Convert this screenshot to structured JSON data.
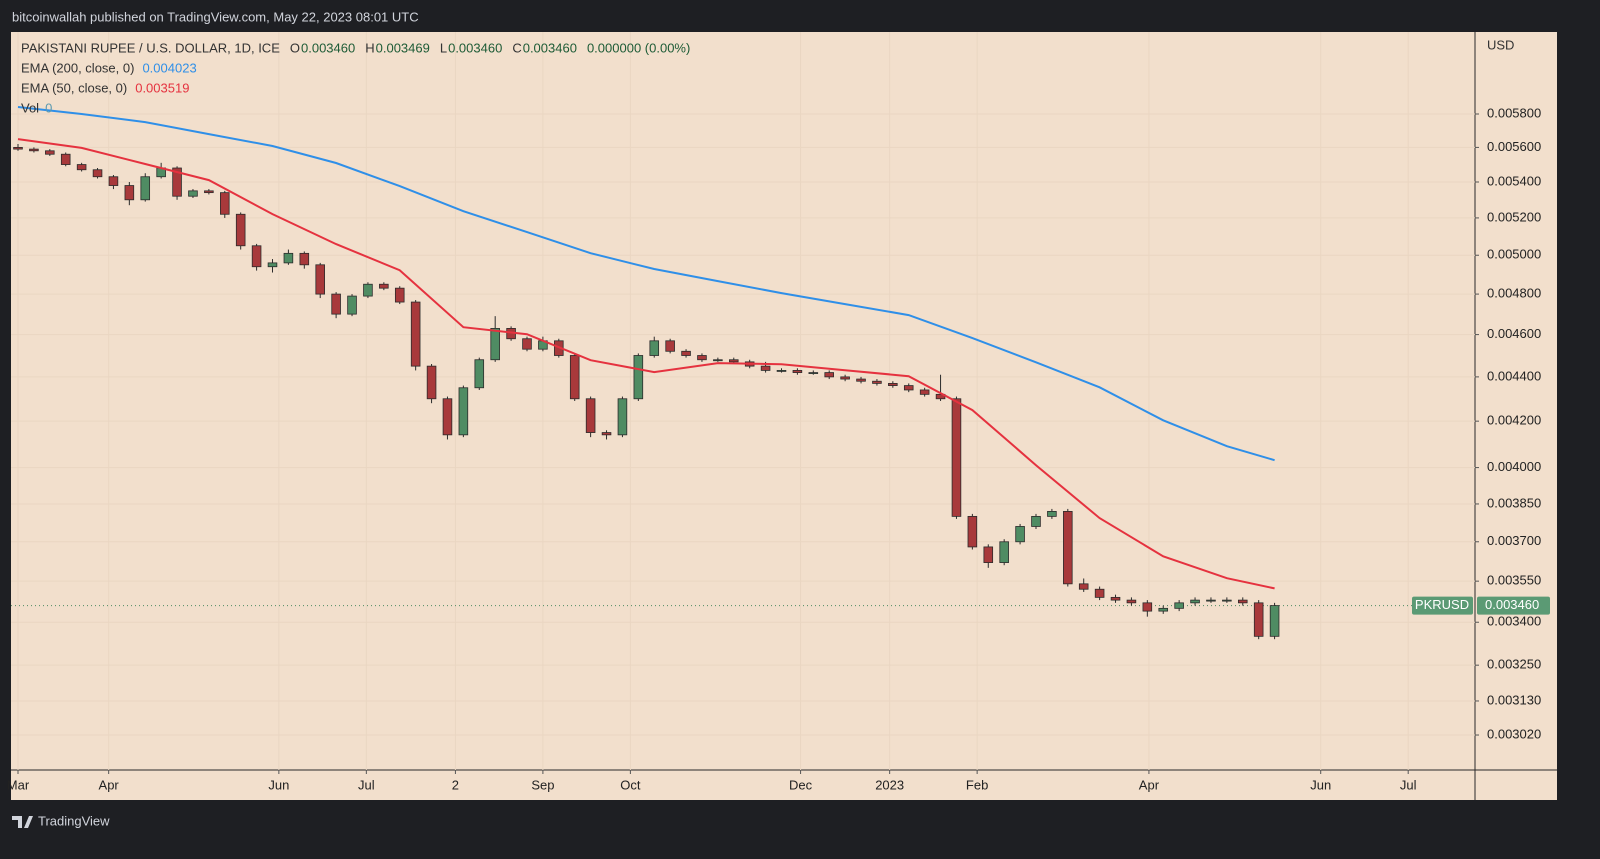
{
  "header": "bitcoinwallah published on TradingView.com, May 22, 2023 08:01 UTC",
  "footer": "TradingView",
  "chart_data": {
    "type": "candlestick",
    "legend": {
      "title": "PAKISTANI RUPEE / U.S. DOLLAR, 1D, ICE",
      "ohlc": [
        {
          "key": "O",
          "value": "0.003460"
        },
        {
          "key": "H",
          "value": "0.003469"
        },
        {
          "key": "L",
          "value": "0.003460"
        },
        {
          "key": "C",
          "value": "0.003460"
        }
      ],
      "change": "0.000000 (0.00%)",
      "volume": {
        "name": "Vol",
        "value": "0"
      }
    },
    "y_axis_label": "USD",
    "symbol": "PKRUSD",
    "last_price": {
      "value": 0.00346,
      "label": "0.003460"
    },
    "log_scale": true,
    "grid": true,
    "up_color": "#4f8c63",
    "down_color": "#a8393b",
    "xlim": [
      -0.44,
      91.6
    ],
    "xticks": [
      {
        "value": 0,
        "label": "Mar"
      },
      {
        "value": 5.7,
        "label": "Apr"
      },
      {
        "value": 16.4,
        "label": "Jun"
      },
      {
        "value": 21.9,
        "label": "Jul"
      },
      {
        "value": 27.5,
        "label": "2"
      },
      {
        "value": 33,
        "label": "Sep"
      },
      {
        "value": 38.5,
        "label": "Oct"
      },
      {
        "value": 49.2,
        "label": "Dec"
      },
      {
        "value": 54.8,
        "label": "2023"
      },
      {
        "value": 60.3,
        "label": "Feb"
      },
      {
        "value": 71.1,
        "label": "Apr"
      },
      {
        "value": 81.9,
        "label": "Jun"
      },
      {
        "value": 87.4,
        "label": "Jul"
      }
    ],
    "ylim": [
      0.002911,
      0.006322
    ],
    "yticks": [
      {
        "value": 0.0058,
        "label": "0.005800"
      },
      {
        "value": 0.0056,
        "label": "0.005600"
      },
      {
        "value": 0.0054,
        "label": "0.005400"
      },
      {
        "value": 0.0052,
        "label": "0.005200"
      },
      {
        "value": 0.005,
        "label": "0.005000"
      },
      {
        "value": 0.0048,
        "label": "0.004800"
      },
      {
        "value": 0.0046,
        "label": "0.004600"
      },
      {
        "value": 0.0044,
        "label": "0.004400"
      },
      {
        "value": 0.0042,
        "label": "0.004200"
      },
      {
        "value": 0.004,
        "label": "0.004000"
      },
      {
        "value": 0.00385,
        "label": "0.003850"
      },
      {
        "value": 0.0037,
        "label": "0.003700"
      },
      {
        "value": 0.00355,
        "label": "0.003550"
      },
      {
        "value": 0.0034,
        "label": "0.003400"
      },
      {
        "value": 0.00325,
        "label": "0.003250"
      },
      {
        "value": 0.00313,
        "label": "0.003130"
      },
      {
        "value": 0.00302,
        "label": "0.003020"
      }
    ],
    "open": [
      0.0056,
      0.00559,
      0.00558,
      0.00556,
      0.0055,
      0.00547,
      0.00543,
      0.00538,
      0.0053,
      0.00543,
      0.00548,
      0.00532,
      0.00535,
      0.00534,
      0.00522,
      0.00505,
      0.00494,
      0.00496,
      0.00501,
      0.00495,
      0.0048,
      0.0047,
      0.00479,
      0.00485,
      0.00483,
      0.00476,
      0.00445,
      0.0043,
      0.00414,
      0.00435,
      0.00448,
      0.00463,
      0.00458,
      0.00453,
      0.00457,
      0.0045,
      0.0043,
      0.00415,
      0.00414,
      0.0043,
      0.0045,
      0.00457,
      0.00452,
      0.0045,
      0.00448,
      0.00448,
      0.00447,
      0.00445,
      0.00443,
      0.00443,
      0.00442,
      0.00442,
      0.0044,
      0.00439,
      0.00438,
      0.00437,
      0.00436,
      0.00434,
      0.00432,
      0.0043,
      0.0038,
      0.00368,
      0.00362,
      0.0037,
      0.00376,
      0.0038,
      0.00382,
      0.00354,
      0.00352,
      0.00349,
      0.00348,
      0.00347,
      0.00344,
      0.00345,
      0.00347,
      0.00348,
      0.00348,
      0.00348,
      0.00347,
      0.00335
    ],
    "high": [
      0.00562,
      0.0056,
      0.00559,
      0.00557,
      0.00551,
      0.00548,
      0.00544,
      0.0054,
      0.00545,
      0.00551,
      0.00549,
      0.00536,
      0.00536,
      0.00535,
      0.00523,
      0.00506,
      0.00498,
      0.00503,
      0.00502,
      0.00496,
      0.00481,
      0.0048,
      0.00486,
      0.00486,
      0.00484,
      0.00477,
      0.00446,
      0.00431,
      0.00436,
      0.00449,
      0.00469,
      0.00464,
      0.00459,
      0.00459,
      0.00458,
      0.00451,
      0.00431,
      0.00416,
      0.00431,
      0.00451,
      0.00459,
      0.00458,
      0.00453,
      0.00451,
      0.00449,
      0.00449,
      0.00448,
      0.00447,
      0.00444,
      0.00444,
      0.00443,
      0.00443,
      0.00441,
      0.0044,
      0.00439,
      0.00438,
      0.00437,
      0.00435,
      0.00441,
      0.00431,
      0.00381,
      0.00369,
      0.00371,
      0.00377,
      0.00381,
      0.00383,
      0.00383,
      0.00356,
      0.00353,
      0.0035,
      0.00349,
      0.00348,
      0.00346,
      0.00348,
      0.00349,
      0.00349,
      0.00349,
      0.00349,
      0.00348,
      0.00347
    ],
    "low": [
      0.00558,
      0.00557,
      0.00555,
      0.00549,
      0.00546,
      0.00542,
      0.00536,
      0.00527,
      0.00529,
      0.00542,
      0.0053,
      0.00531,
      0.00533,
      0.0052,
      0.00503,
      0.00492,
      0.00491,
      0.00495,
      0.00493,
      0.00478,
      0.00468,
      0.00469,
      0.00478,
      0.00482,
      0.00475,
      0.00443,
      0.00428,
      0.00412,
      0.00413,
      0.00434,
      0.00447,
      0.00457,
      0.00452,
      0.00452,
      0.00449,
      0.00429,
      0.00413,
      0.00412,
      0.00413,
      0.00429,
      0.00449,
      0.00451,
      0.00449,
      0.00447,
      0.00447,
      0.00446,
      0.00444,
      0.00442,
      0.00442,
      0.00441,
      0.00441,
      0.00439,
      0.00438,
      0.00437,
      0.00436,
      0.00435,
      0.00433,
      0.00431,
      0.00429,
      0.00379,
      0.00367,
      0.0036,
      0.00361,
      0.00369,
      0.00375,
      0.00379,
      0.00353,
      0.00351,
      0.00348,
      0.00347,
      0.00346,
      0.00342,
      0.00343,
      0.00344,
      0.00346,
      0.00347,
      0.00347,
      0.00346,
      0.00334,
      0.00334
    ],
    "close": [
      0.00559,
      0.00558,
      0.00556,
      0.0055,
      0.00547,
      0.00543,
      0.00538,
      0.0053,
      0.00543,
      0.00548,
      0.00532,
      0.00535,
      0.00534,
      0.00522,
      0.00505,
      0.00494,
      0.00496,
      0.00501,
      0.00495,
      0.0048,
      0.0047,
      0.00479,
      0.00485,
      0.00483,
      0.00476,
      0.00445,
      0.0043,
      0.00414,
      0.00435,
      0.00448,
      0.00463,
      0.00458,
      0.00453,
      0.00457,
      0.0045,
      0.0043,
      0.00415,
      0.00414,
      0.0043,
      0.0045,
      0.00457,
      0.00452,
      0.0045,
      0.00448,
      0.00448,
      0.00447,
      0.00445,
      0.00443,
      0.00443,
      0.00442,
      0.00442,
      0.0044,
      0.00439,
      0.00438,
      0.00437,
      0.00436,
      0.00434,
      0.00432,
      0.0043,
      0.0038,
      0.00368,
      0.00362,
      0.0037,
      0.00376,
      0.0038,
      0.00382,
      0.00354,
      0.00352,
      0.00349,
      0.00348,
      0.00347,
      0.00344,
      0.00345,
      0.00347,
      0.00348,
      0.00348,
      0.00348,
      0.00347,
      0.00335,
      0.00346
    ],
    "series": [
      {
        "name": "EMA (200, close, 0)",
        "last_label": "0.004023",
        "color": "#2f8fe8",
        "x": [
          0,
          4,
          8,
          12,
          16,
          20,
          24,
          28,
          32,
          36,
          40,
          44,
          48,
          52,
          56,
          60,
          64,
          68,
          72,
          76,
          79
        ],
        "values": [
          0.005843,
          0.0058,
          0.005751,
          0.005679,
          0.005608,
          0.005509,
          0.005377,
          0.005237,
          0.005123,
          0.005011,
          0.004928,
          0.004866,
          0.004805,
          0.00475,
          0.004695,
          0.004583,
          0.004468,
          0.004352,
          0.004204,
          0.004091,
          0.004031
        ]
      },
      {
        "name": "EMA (50, close, 0)",
        "last_label": "0.003519",
        "color": "#e5323f",
        "x": [
          0,
          4,
          8,
          12,
          16,
          20,
          24,
          28,
          32,
          36,
          40,
          44,
          48,
          52,
          56,
          60,
          64,
          68,
          72,
          76,
          79
        ],
        "values": [
          0.005649,
          0.005597,
          0.005503,
          0.005411,
          0.005221,
          0.005059,
          0.004922,
          0.004636,
          0.004602,
          0.004478,
          0.004422,
          0.004464,
          0.004459,
          0.004431,
          0.004403,
          0.004249,
          0.00401,
          0.003793,
          0.003644,
          0.003561,
          0.003523
        ]
      }
    ]
  }
}
